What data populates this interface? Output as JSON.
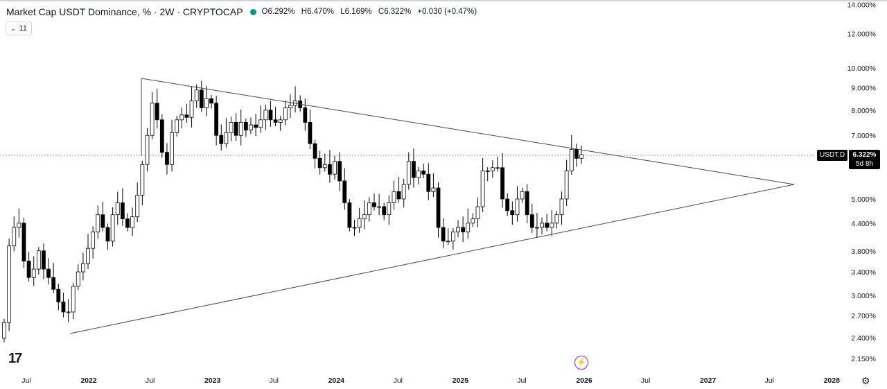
{
  "header": {
    "symbol_title": "Market Cap USDT Dominance, % · 2W · CRYPTOCAP",
    "open_label": "O",
    "open": "6.292%",
    "high_label": "H",
    "high": "6.470%",
    "low_label": "L",
    "low": "6.169%",
    "close_label": "C",
    "close": "6.322%",
    "change": "+0.030 (+0.47%)",
    "indicators_count": "11",
    "dot_color": "#089981"
  },
  "price_tag": {
    "ticker": "USDT.D",
    "value": "6.322%",
    "countdown": "5d 8h"
  },
  "colors": {
    "up_fill": "#ffffff",
    "down_fill": "#000000",
    "candle_stroke": "#000000",
    "trendline": "#434651",
    "grid_text": "#131722",
    "accent": "#9c27b0"
  },
  "icons": {
    "logo": "tradingview-logo-icon",
    "alert": "lightning-bolt-icon",
    "settings": "gear-icon",
    "dropdown": "chevron-down-icon"
  },
  "chart_data": {
    "type": "candlestick",
    "title": "Market Cap USDT Dominance, % · 2W · CRYPTOCAP",
    "scale": "log",
    "ylim": [
      2.0,
      14.0
    ],
    "y_ticks": [
      "14.000%",
      "12.000%",
      "10.000%",
      "9.000%",
      "8.000%",
      "7.000%",
      "5.000%",
      "4.400%",
      "3.800%",
      "3.400%",
      "3.000%",
      "2.700%",
      "2.400%",
      "2.150%"
    ],
    "y_tick_values": [
      14.0,
      12.0,
      10.0,
      9.0,
      8.0,
      7.0,
      5.0,
      4.4,
      3.8,
      3.4,
      3.0,
      2.7,
      2.4,
      2.15
    ],
    "x_ticks": [
      "Jul",
      "2022",
      "Jul",
      "2023",
      "Jul",
      "2024",
      "Jul",
      "2025",
      "Jul",
      "2026",
      "Jul",
      "2027",
      "Jul",
      "2028"
    ],
    "x_tick_dates": [
      "2021-07-01",
      "2022-01-01",
      "2022-07-01",
      "2023-01-01",
      "2023-07-01",
      "2024-01-01",
      "2024-07-01",
      "2025-01-01",
      "2025-07-01",
      "2026-01-01",
      "2026-07-01",
      "2027-01-01",
      "2027-07-01",
      "2028-01-01"
    ],
    "last_price": 6.322,
    "candle_close": [
      2.6,
      3.9,
      4.3,
      4.4,
      3.6,
      3.3,
      3.45,
      3.8,
      3.45,
      3.3,
      3.1,
      2.9,
      2.75,
      2.75,
      3.15,
      3.4,
      3.55,
      3.85,
      4.2,
      4.6,
      4.3,
      4.0,
      4.6,
      4.9,
      4.5,
      4.3,
      4.55,
      5.1,
      6.0,
      7.0,
      8.3,
      7.6,
      6.4,
      6.0,
      7.1,
      7.6,
      7.8,
      7.7,
      8.4,
      8.9,
      8.1,
      8.5,
      8.3,
      7.0,
      6.7,
      7.1,
      7.5,
      7.0,
      7.5,
      7.2,
      7.4,
      7.3,
      7.6,
      8.0,
      7.6,
      7.5,
      7.6,
      8.1,
      8.2,
      8.4,
      8.1,
      7.5,
      6.7,
      6.2,
      5.9,
      6.0,
      5.7,
      6.1,
      5.5,
      4.9,
      4.3,
      4.3,
      4.5,
      4.6,
      4.9,
      4.8,
      4.8,
      4.6,
      4.9,
      5.2,
      5.0,
      5.4,
      6.1,
      5.6,
      5.8,
      5.7,
      5.2,
      5.3,
      4.3,
      4.0,
      4.0,
      4.2,
      4.3,
      4.2,
      4.4,
      4.5,
      4.8,
      5.8,
      5.8,
      5.9,
      5.9,
      5.0,
      4.7,
      4.6,
      5.0,
      5.2,
      4.6,
      4.3,
      4.3,
      4.4,
      4.3,
      4.4,
      4.6,
      5.0,
      5.8,
      6.5,
      6.2,
      6.322
    ],
    "x_label": "",
    "y_label": ""
  }
}
